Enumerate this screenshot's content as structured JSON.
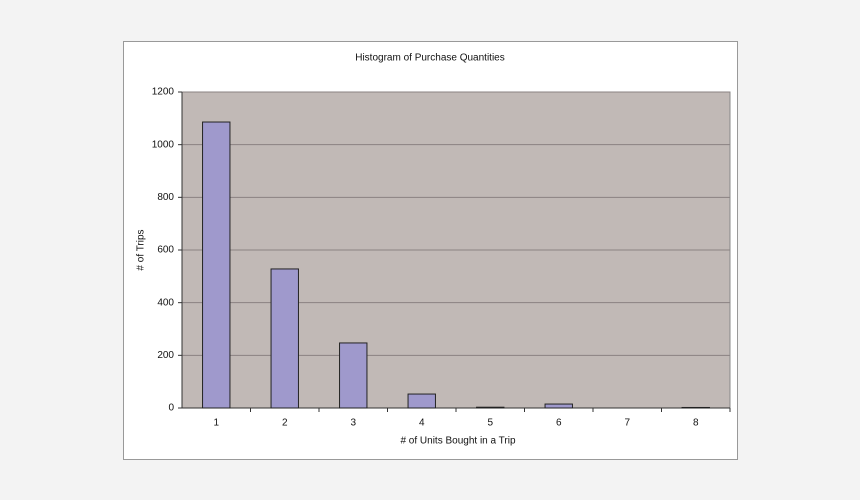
{
  "chart_data": {
    "type": "bar",
    "title": "Histogram of Purchase Quantities",
    "x_label": "# of Units Bought in a Trip",
    "y_label": "# of Trips",
    "categories": [
      "1",
      "2",
      "3",
      "4",
      "5",
      "6",
      "7",
      "8"
    ],
    "values": [
      1086,
      528,
      247,
      53,
      3,
      15,
      0,
      2
    ],
    "color": "#9f99cc",
    "plot_background": "#c1b9b6",
    "ylim": [
      0,
      1200
    ],
    "yticks": [
      0,
      200,
      400,
      600,
      800,
      1000,
      1200
    ],
    "grid": true
  }
}
